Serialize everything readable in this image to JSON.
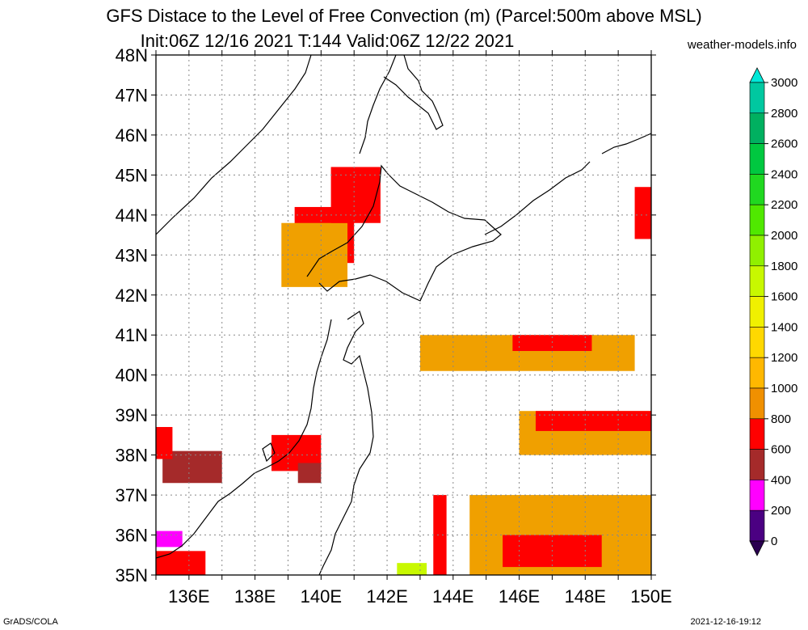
{
  "title_line1": "GFS Distace to the Level of Free Convection (m) (Parcel:500m above MSL)",
  "title_line2": "Init:06Z 12/16 2021 T:144 Valid:06Z 12/22 2021",
  "site": "weather-models.info",
  "footer_left": "GrADS/COLA",
  "footer_right": "2021-12-16-19:12",
  "map": {
    "lat_range": [
      35,
      48
    ],
    "lon_range": [
      135,
      150
    ],
    "lat_labels": [
      "48N",
      "47N",
      "46N",
      "45N",
      "44N",
      "43N",
      "42N",
      "41N",
      "40N",
      "39N",
      "38N",
      "37N",
      "36N",
      "35N"
    ],
    "lon_labels": [
      "136E",
      "138E",
      "140E",
      "142E",
      "144E",
      "146E",
      "148E",
      "150E"
    ]
  },
  "colorbar": {
    "labels": [
      "3000",
      "2800",
      "2600",
      "2400",
      "2200",
      "2000",
      "1800",
      "1600",
      "1400",
      "1200",
      "1000",
      "800",
      "600",
      "400",
      "200",
      "0"
    ],
    "colors": [
      "#00e8d8",
      "#00c8a0",
      "#00b060",
      "#00c840",
      "#20d820",
      "#50e800",
      "#90f000",
      "#c8f800",
      "#f0f000",
      "#ffd800",
      "#ffb800",
      "#f09000",
      "#ff0000",
      "#a52a2a",
      "#ff00ff",
      "#4b0082",
      "#2a0050"
    ]
  },
  "regions": [
    {
      "name": "hokkaido-west",
      "color": "#ff0000",
      "lon": [
        139.2,
        141.0
      ],
      "lat": [
        42.8,
        44.2
      ]
    },
    {
      "name": "hokkaido-west-2",
      "color": "#f0a000",
      "lon": [
        138.8,
        140.8
      ],
      "lat": [
        42.2,
        43.8
      ]
    },
    {
      "name": "north-coast",
      "color": "#ff0000",
      "lon": [
        140.3,
        141.8
      ],
      "lat": [
        43.8,
        45.2
      ]
    },
    {
      "name": "pacific-east-band",
      "color": "#f0a000",
      "lon": [
        143.0,
        149.5
      ],
      "lat": [
        40.1,
        41.0
      ]
    },
    {
      "name": "pacific-east-red",
      "color": "#ff0000",
      "lon": [
        145.8,
        148.2
      ],
      "lat": [
        40.6,
        41.0
      ]
    },
    {
      "name": "pacific-38-band",
      "color": "#f0a000",
      "lon": [
        146.0,
        150.0
      ],
      "lat": [
        38.0,
        39.1
      ]
    },
    {
      "name": "pacific-38-red",
      "color": "#ff0000",
      "lon": [
        146.5,
        150.0
      ],
      "lat": [
        38.6,
        39.1
      ]
    },
    {
      "name": "pacific-south",
      "color": "#f0a000",
      "lon": [
        144.5,
        150.0
      ],
      "lat": [
        35.0,
        37.0
      ]
    },
    {
      "name": "pacific-south-red",
      "color": "#ff0000",
      "lon": [
        145.5,
        148.5
      ],
      "lat": [
        35.2,
        36.0
      ]
    },
    {
      "name": "japan-sea-38",
      "color": "#ff0000",
      "lon": [
        138.5,
        140.0
      ],
      "lat": [
        37.6,
        38.5
      ]
    },
    {
      "name": "japan-sea-38-brown",
      "color": "#a52a2a",
      "lon": [
        139.3,
        140.0
      ],
      "lat": [
        37.3,
        37.8
      ]
    },
    {
      "name": "west-brown",
      "color": "#a52a2a",
      "lon": [
        135.2,
        137.0
      ],
      "lat": [
        37.3,
        38.1
      ]
    },
    {
      "name": "west-red",
      "color": "#ff0000",
      "lon": [
        135.0,
        135.5
      ],
      "lat": [
        37.9,
        38.7
      ]
    },
    {
      "name": "southwest-magenta",
      "color": "#ff00ff",
      "lon": [
        135.0,
        135.8
      ],
      "lat": [
        35.7,
        36.1
      ]
    },
    {
      "name": "southwest-red",
      "color": "#ff0000",
      "lon": [
        135.0,
        136.5
      ],
      "lat": [
        35.0,
        35.6
      ]
    },
    {
      "name": "east-44-red",
      "color": "#ff0000",
      "lon": [
        149.5,
        150.0
      ],
      "lat": [
        43.4,
        44.7
      ]
    },
    {
      "name": "south-central-green",
      "color": "#c8f800",
      "lon": [
        142.3,
        143.2
      ],
      "lat": [
        35.0,
        35.3
      ]
    },
    {
      "name": "south-central-red",
      "color": "#ff0000",
      "lon": [
        143.4,
        143.8
      ],
      "lat": [
        35.0,
        37.0
      ]
    }
  ]
}
